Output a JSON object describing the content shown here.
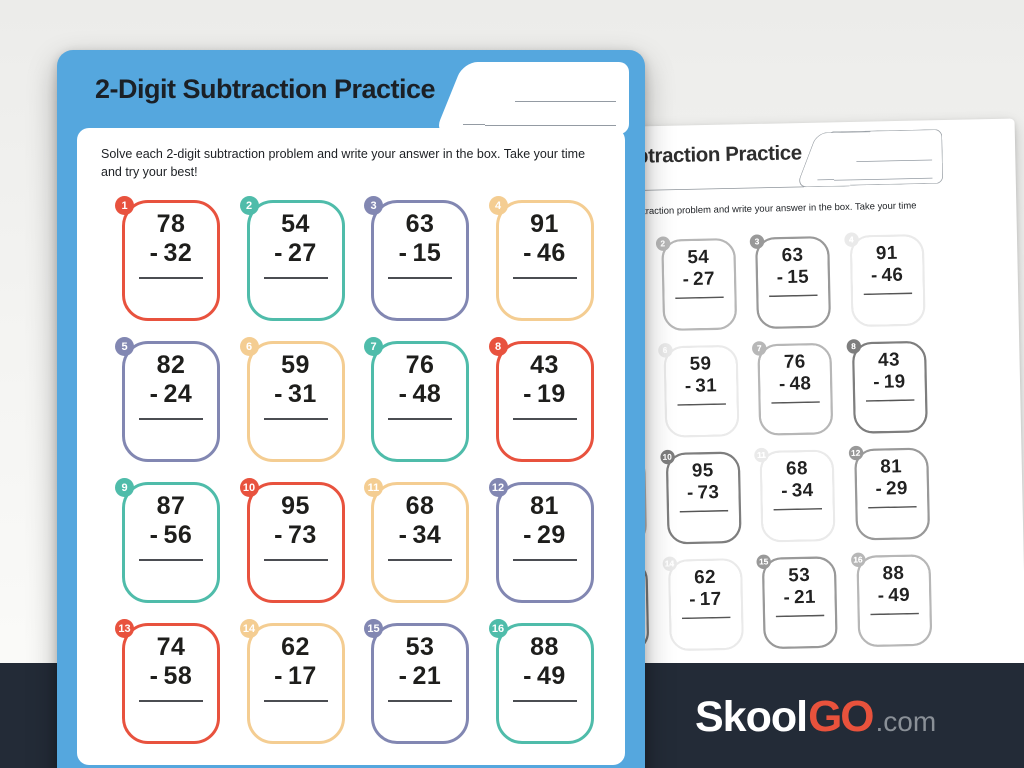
{
  "worksheet": {
    "title": "2-Digit Subtraction Practice",
    "instructions": "Solve each 2-digit subtraction problem and write your answer in the box. Take your time and try your best!",
    "minus_sign": "-",
    "header_blue": "#55a7de",
    "palette": {
      "red": "#e8523e",
      "teal": "#4fbcaa",
      "purple": "#8287b2",
      "yellow": "#f4cd92"
    },
    "problems": [
      {
        "number": 1,
        "minuend": 78,
        "subtrahend": 32,
        "color": "red"
      },
      {
        "number": 2,
        "minuend": 54,
        "subtrahend": 27,
        "color": "teal"
      },
      {
        "number": 3,
        "minuend": 63,
        "subtrahend": 15,
        "color": "purple"
      },
      {
        "number": 4,
        "minuend": 91,
        "subtrahend": 46,
        "color": "yellow"
      },
      {
        "number": 5,
        "minuend": 82,
        "subtrahend": 24,
        "color": "purple"
      },
      {
        "number": 6,
        "minuend": 59,
        "subtrahend": 31,
        "color": "yellow"
      },
      {
        "number": 7,
        "minuend": 76,
        "subtrahend": 48,
        "color": "teal"
      },
      {
        "number": 8,
        "minuend": 43,
        "subtrahend": 19,
        "color": "red"
      },
      {
        "number": 9,
        "minuend": 87,
        "subtrahend": 56,
        "color": "teal"
      },
      {
        "number": 10,
        "minuend": 95,
        "subtrahend": 73,
        "color": "red"
      },
      {
        "number": 11,
        "minuend": 68,
        "subtrahend": 34,
        "color": "yellow"
      },
      {
        "number": 12,
        "minuend": 81,
        "subtrahend": 29,
        "color": "purple"
      },
      {
        "number": 13,
        "minuend": 74,
        "subtrahend": 58,
        "color": "red"
      },
      {
        "number": 14,
        "minuend": 62,
        "subtrahend": 17,
        "color": "yellow"
      },
      {
        "number": 15,
        "minuend": 53,
        "subtrahend": 21,
        "color": "purple"
      },
      {
        "number": 16,
        "minuend": 88,
        "subtrahend": 49,
        "color": "teal"
      }
    ]
  },
  "branding": {
    "logo_part1": "Skool",
    "logo_part2": "GO",
    "logo_suffix": ".com",
    "band_color": "#232b37",
    "accent_color": "#e8523c",
    "suffix_color": "#8a9097"
  }
}
